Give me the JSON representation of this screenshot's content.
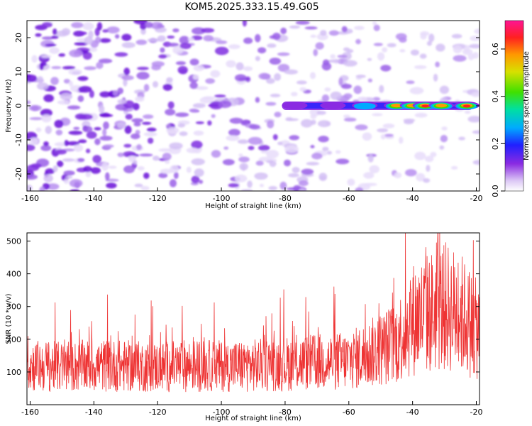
{
  "title": "KOM5.2025.333.15.49.G05",
  "chart_data": [
    {
      "type": "heatmap",
      "name": "spectrogram",
      "xlabel": "Height of straight line (km)",
      "ylabel": "Frequency (Hz)",
      "xlim": [
        -161,
        -19
      ],
      "ylim": [
        -25,
        25
      ],
      "x_ticks": [
        -160,
        -140,
        -120,
        -100,
        -80,
        -60,
        -40,
        -20
      ],
      "y_ticks": [
        -20,
        -10,
        0,
        10,
        20
      ],
      "colorbar": {
        "label": "Normalized spectral amplitude",
        "range": [
          0.0,
          0.72
        ],
        "ticks": [
          0.0,
          0.2,
          0.4,
          0.6
        ]
      },
      "signal_band": {
        "frequency_hz": 0,
        "x_start": -81,
        "x_end": -21,
        "peaks": [
          {
            "x": -77,
            "amplitude": 0.18
          },
          {
            "x": -65,
            "amplitude": 0.22
          },
          {
            "x": -55,
            "amplitude": 0.3
          },
          {
            "x": -45,
            "amplitude": 0.62
          },
          {
            "x": -40,
            "amplitude": 0.55
          },
          {
            "x": -36,
            "amplitude": 0.7
          },
          {
            "x": -31,
            "amplitude": 0.6
          },
          {
            "x": -23,
            "amplitude": 0.72
          }
        ]
      }
    },
    {
      "type": "line",
      "name": "snr",
      "xlabel": "Height of straight line (km)",
      "ylabel": "SNR (10 * v/v)",
      "xlim": [
        -161,
        -19
      ],
      "ylim": [
        0,
        525
      ],
      "x_ticks": [
        -160,
        -140,
        -120,
        -100,
        -80,
        -60,
        -40,
        -20
      ],
      "y_ticks": [
        100,
        200,
        300,
        400,
        500
      ],
      "color": "#ee3333",
      "series": [
        {
          "name": "SNR",
          "x": [
            -160,
            -150,
            -140,
            -130,
            -120,
            -110,
            -100,
            -90,
            -80,
            -70,
            -60,
            -55,
            -50,
            -45,
            -40,
            -35,
            -30,
            -25,
            -20
          ],
          "values": [
            120,
            115,
            120,
            118,
            115,
            120,
            118,
            120,
            125,
            130,
            135,
            150,
            170,
            190,
            260,
            280,
            300,
            280,
            230
          ]
        }
      ]
    }
  ]
}
